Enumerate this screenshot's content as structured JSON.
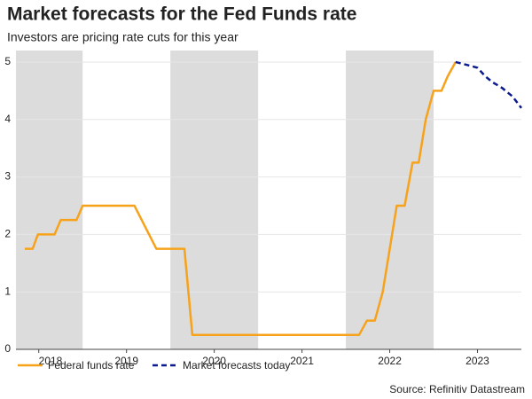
{
  "chart_data": {
    "type": "line",
    "title": "Market forecasts for the Fed Funds rate",
    "subtitle": "Investors are pricing rate cuts for this year",
    "source": "Source: Refinitiv Datastream",
    "xlim": [
      2018.24,
      2024
    ],
    "xticks": [
      {
        "value": 2018.5,
        "label": "2018"
      },
      {
        "value": 2019.5,
        "label": "2019"
      },
      {
        "value": 2020.5,
        "label": "2020"
      },
      {
        "value": 2021.5,
        "label": "2021"
      },
      {
        "value": 2022.5,
        "label": "2022"
      },
      {
        "value": 2023.5,
        "label": "2023"
      }
    ],
    "ylim": [
      0,
      5.2
    ],
    "yticks": [
      0,
      1,
      2,
      3,
      4,
      5
    ],
    "grid": true,
    "shaded": [
      [
        2018.24,
        2019
      ],
      [
        2020,
        2021
      ],
      [
        2022,
        2023
      ]
    ],
    "legend": "bottom",
    "series": [
      {
        "name": "Federal funds rate",
        "color": "#f7a21b",
        "dash": false,
        "x": [
          2018.34,
          2018.43,
          2018.49,
          2018.68,
          2018.75,
          2018.93,
          2019.0,
          2019.59,
          2019.84,
          2020.16,
          2020.25,
          2022.15,
          2022.24,
          2022.33,
          2022.42,
          2022.58,
          2022.67,
          2022.76,
          2022.83,
          2022.91,
          2023.0,
          2023.09,
          2023.16,
          2023.25
        ],
        "values": [
          1.75,
          1.75,
          2.0,
          2.0,
          2.25,
          2.25,
          2.5,
          2.5,
          1.75,
          1.75,
          0.25,
          0.25,
          0.5,
          0.5,
          1.0,
          2.5,
          2.5,
          3.25,
          3.25,
          4.0,
          4.5,
          4.5,
          4.75,
          5.0
        ]
      },
      {
        "name": "Market forecasts today",
        "color": "#0b1a8c",
        "dash": true,
        "x": [
          2023.25,
          2023.38,
          2023.5,
          2023.59,
          2023.67,
          2023.78,
          2023.9,
          2024.0
        ],
        "values": [
          5.0,
          4.95,
          4.9,
          4.75,
          4.65,
          4.55,
          4.4,
          4.2
        ]
      }
    ]
  }
}
